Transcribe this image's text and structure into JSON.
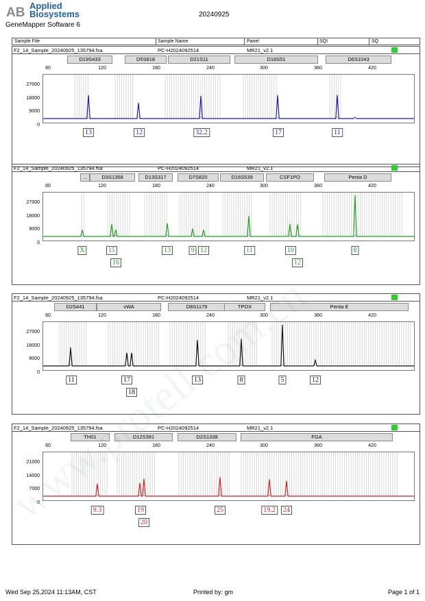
{
  "header": {
    "logo_line1": "Applied",
    "logo_line2": "Biosystems",
    "logo_mark": "AB",
    "software": "GeneMapper Software 6",
    "date": "20240925"
  },
  "columns": [
    "Sample File",
    "Sample Name",
    "Panel",
    "SQI",
    "SQ"
  ],
  "scale_labels": [
    "60",
    "120",
    "180",
    "240",
    "300",
    "360",
    "420"
  ],
  "panels": [
    {
      "sample_file": "F2_14_Sample_20240925_135794.fsa",
      "sample_name": "PC-H2024092514",
      "panel": "MR21_v2.1",
      "color": "#1a1aa8",
      "y_labels": [
        "27000",
        "18000",
        "9000",
        "0"
      ],
      "markers": [
        "D19S433",
        "D5S818",
        "D21S11",
        "D18S51",
        "D6S1043"
      ],
      "alleles": [
        {
          "label": "13",
          "row": 0
        },
        {
          "label": "12",
          "row": 0
        },
        {
          "label": "32.2",
          "row": 0
        },
        {
          "label": "17",
          "row": 0
        },
        {
          "label": "11",
          "row": 0
        }
      ]
    },
    {
      "sample_file": "F2_14_Sample_20240925_135794.fsa",
      "sample_name": "PC-H2024092514",
      "panel": "MR21_v2.1",
      "color": "#1ea21e",
      "y_labels": [
        "27000",
        "18000",
        "9000",
        "0"
      ],
      "markers": [
        "...",
        "D3S1358",
        "D13S317",
        "D7S820",
        "D16S539",
        "CSF1PO",
        "Penta D"
      ],
      "alleles": [
        {
          "label": "X",
          "row": 0
        },
        {
          "label": "15",
          "row": 0
        },
        {
          "label": "16",
          "row": 1
        },
        {
          "label": "13",
          "row": 0
        },
        {
          "label": "9",
          "row": 0
        },
        {
          "label": "12",
          "row": 0
        },
        {
          "label": "11",
          "row": 0
        },
        {
          "label": "10",
          "row": 0
        },
        {
          "label": "12",
          "row": 1
        },
        {
          "label": "8",
          "row": 0
        }
      ]
    },
    {
      "sample_file": "F2_14_Sample_20240925_135794.fsa",
      "sample_name": "PC-H2024092514",
      "panel": "MR21_v2.1",
      "color": "#111111",
      "y_labels": [
        "27000",
        "18000",
        "9000",
        "0"
      ],
      "markers": [
        "D2S441",
        "vWA",
        "D8S1179",
        "TPOX",
        "Penta E"
      ],
      "alleles": [
        {
          "label": "11",
          "row": 0
        },
        {
          "label": "17",
          "row": 0
        },
        {
          "label": "18",
          "row": 1
        },
        {
          "label": "13",
          "row": 0
        },
        {
          "label": "8",
          "row": 0
        },
        {
          "label": "5",
          "row": 0
        },
        {
          "label": "12",
          "row": 0
        }
      ]
    },
    {
      "sample_file": "F2_14_Sample_20240925_135794.fsa",
      "sample_name": "PC-H2024092514",
      "panel": "MR21_v2.1",
      "color": "#cc2222",
      "y_labels": [
        "21000",
        "14000",
        "7000",
        "0"
      ],
      "markers": [
        "TH01",
        "D12S391",
        "D2S1338",
        "FGA"
      ],
      "alleles": [
        {
          "label": "9.3",
          "row": 0
        },
        {
          "label": "19",
          "row": 0
        },
        {
          "label": "20",
          "row": 1
        },
        {
          "label": "25",
          "row": 0
        },
        {
          "label": "19.2",
          "row": 0
        },
        {
          "label": "24",
          "row": 0
        }
      ]
    }
  ],
  "footer": {
    "printed_date": "Wed Sep 25,2024 11:13AM, CST",
    "printed_by": "Printed by: gm",
    "page": "Page 1 of 1"
  },
  "watermark": "www.protell.com.cn"
}
